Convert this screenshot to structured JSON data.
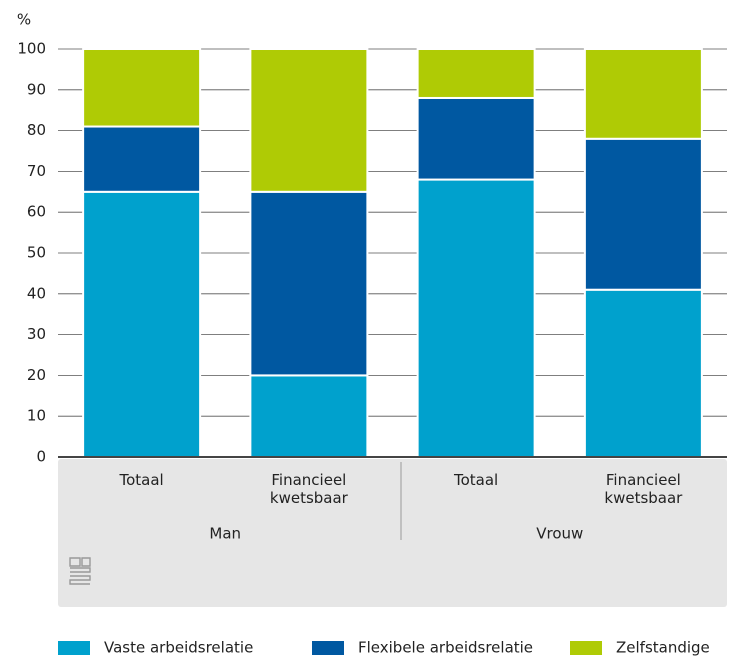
{
  "chart_data": {
    "type": "stacked_bar",
    "y_unit": "%",
    "categories": [
      "Totaal",
      "Financieel kwetsbaar",
      "Totaal",
      "Financieel kwetsbaar"
    ],
    "groups": [
      "Man",
      "Vrouw"
    ],
    "series": [
      {
        "name": "Vaste arbeidsrelatie",
        "color": "#00a1cd",
        "values": [
          65,
          20,
          68,
          41
        ]
      },
      {
        "name": "Flexibele arbeidsrelatie",
        "color": "#0058a1",
        "values": [
          16,
          45,
          20,
          37
        ]
      },
      {
        "name": "Zelfstandige",
        "color": "#afcb05",
        "values": [
          19,
          35,
          12,
          22
        ]
      }
    ],
    "ylim": [
      0,
      100
    ],
    "yticks": [
      0,
      10,
      20,
      30,
      40,
      50,
      60,
      70,
      80,
      90,
      100
    ],
    "grid": true
  }
}
